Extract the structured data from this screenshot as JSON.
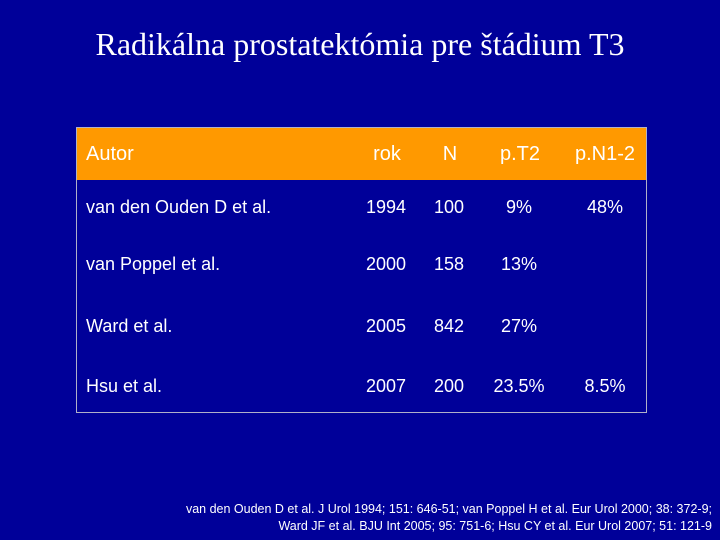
{
  "title": "Radikálna prostatektómia pre štádium T3",
  "table": {
    "header_color": "#ff9900",
    "columns": [
      "Autor",
      "rok",
      "N",
      "p.T2",
      "p.N1-2"
    ],
    "rows": [
      {
        "autor": "van den Ouden D et al.",
        "rok": "1994",
        "n": "100",
        "pt2": "9%",
        "pn": "48%"
      },
      {
        "autor": "van Poppel et al.",
        "rok": "2000",
        "n": "158",
        "pt2": "13%",
        "pn": ""
      },
      {
        "autor": "Ward et al.",
        "rok": "2005",
        "n": "842",
        "pt2": "27%",
        "pn": ""
      },
      {
        "autor": "Hsu et al.",
        "rok": "2007",
        "n": "200",
        "pt2": "23.5%",
        "pn": "8.5%"
      }
    ]
  },
  "reference": {
    "line1": "van den Ouden D et al. J Urol 1994; 151: 646-51; van Poppel H et al. Eur Urol 2000; 38: 372-9;",
    "line2": "Ward JF et al. BJU Int 2005; 95: 751-6; Hsu CY et al. Eur Urol 2007; 51: 121-9"
  },
  "colors": {
    "background": "#000099",
    "text": "#ffffff"
  }
}
